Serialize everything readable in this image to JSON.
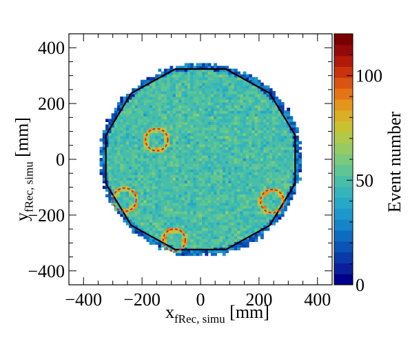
{
  "chart_data": {
    "type": "heatmap",
    "title": "",
    "xlabel_main": "x",
    "xlabel_sub": "fRec, simu",
    "xlabel_unit": "[mm]",
    "ylabel_main": "y",
    "ylabel_sub": "fRec, simu",
    "ylabel_unit": "[mm]",
    "zlabel": "Event number",
    "xlim": [
      -450,
      450
    ],
    "ylim": [
      -450,
      450
    ],
    "zlim": [
      0,
      120
    ],
    "x_ticks": [
      -400,
      -200,
      0,
      200,
      400
    ],
    "y_ticks": [
      -400,
      -200,
      0,
      200,
      400
    ],
    "z_ticks": [
      0,
      50,
      100
    ],
    "x_tick_labels": [
      "−400",
      "−200",
      "0",
      "200",
      "400"
    ],
    "y_tick_labels": [
      "−400",
      "−200",
      "0",
      "200",
      "400"
    ],
    "z_tick_labels": [
      "0",
      "50",
      "100"
    ],
    "bin_size_mm": 10,
    "typical_counts": 50,
    "occupied_radius_mm": 345,
    "dodecagon_vertex_radius_mm": 335,
    "dashed_circles": [
      {
        "x": -150,
        "y": 70,
        "r": 38
      },
      {
        "x": -260,
        "y": -145,
        "r": 40
      },
      {
        "x": -90,
        "y": -290,
        "r": 38
      },
      {
        "x": 245,
        "y": -150,
        "r": 40
      }
    ],
    "palette": [
      "#00008b",
      "#0a1f9c",
      "#0b3aa8",
      "#0a54b5",
      "#0e6cc0",
      "#1784c9",
      "#1e98cc",
      "#27a8c7",
      "#35b5bb",
      "#48bea8",
      "#5fc593",
      "#7ac97c",
      "#96cb63",
      "#b1c94a",
      "#c9c034",
      "#dbaf25",
      "#e3951c",
      "#e37516",
      "#d95412",
      "#c8320e",
      "#b1190b",
      "#940909",
      "#7a0000"
    ],
    "accent_colors": {
      "outline": "#000000",
      "dashed_circle": "#e02020"
    }
  }
}
